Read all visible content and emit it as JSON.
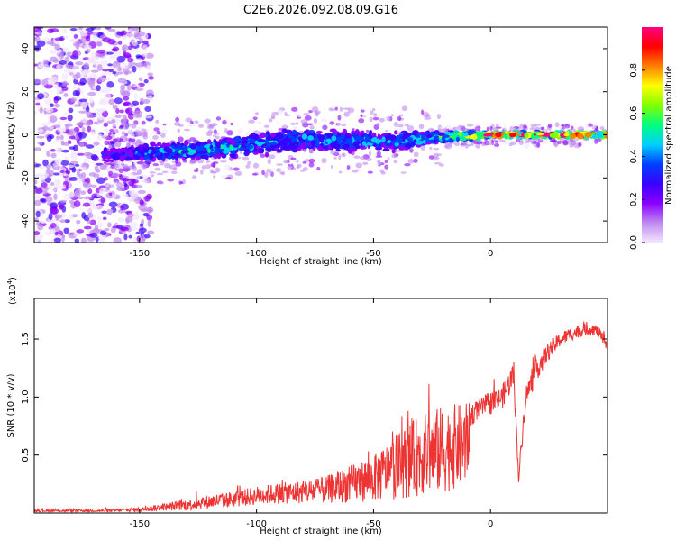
{
  "chart_data": [
    {
      "type": "heatmap",
      "title": "C2E6.2026.092.08.09.G16",
      "xlabel": "Height of straight line (km)",
      "ylabel": "Frequency (Hz)",
      "xlim": [
        -195,
        50
      ],
      "ylim": [
        -50,
        50
      ],
      "x_ticks": [
        -150,
        -100,
        -50,
        0
      ],
      "y_ticks": [
        -40,
        -20,
        0,
        20,
        40
      ],
      "colorbar": {
        "label": "Normalized spectral amplitude",
        "range": [
          0,
          1
        ],
        "ticks": [
          "0.0",
          "0.2",
          "0.4",
          "0.6",
          "0.8"
        ],
        "tick_values": [
          0.0,
          0.2,
          0.4,
          0.6,
          0.8
        ],
        "colors": [
          "#f2e6ff",
          "#c08af0",
          "#8a00ff",
          "#3a00ff",
          "#0040ff",
          "#00d0ff",
          "#00ff80",
          "#80ff00",
          "#ffff00",
          "#ff8000",
          "#ff0000",
          "#ff0080"
        ]
      },
      "ridge": [
        {
          "x": -160,
          "freq": -9,
          "amp": 0.3,
          "spread": 4
        },
        {
          "x": -140,
          "freq": -8,
          "amp": 0.4,
          "spread": 5
        },
        {
          "x": -120,
          "freq": -7,
          "amp": 0.45,
          "spread": 5
        },
        {
          "x": -100,
          "freq": -4,
          "amp": 0.4,
          "spread": 6
        },
        {
          "x": -80,
          "freq": -2,
          "amp": 0.4,
          "spread": 6
        },
        {
          "x": -60,
          "freq": -3,
          "amp": 0.4,
          "spread": 6
        },
        {
          "x": -40,
          "freq": -3,
          "amp": 0.4,
          "spread": 5
        },
        {
          "x": -20,
          "freq": -1,
          "amp": 0.5,
          "spread": 3
        },
        {
          "x": 0,
          "freq": 0,
          "amp": 0.9,
          "spread": 1.5
        },
        {
          "x": 20,
          "freq": 0,
          "amp": 0.85,
          "spread": 1.5
        },
        {
          "x": 45,
          "freq": 0,
          "amp": 0.85,
          "spread": 1.5
        }
      ]
    },
    {
      "type": "line",
      "xlabel": "Height of straight line (km)",
      "ylabel": "SNR (10 * v/v)",
      "y_multiplier": "(x10",
      "y_multiplier_exp": "4",
      "y_multiplier_close": ")",
      "xlim": [
        -195,
        50
      ],
      "ylim": [
        0,
        1.85
      ],
      "x_ticks": [
        -150,
        -100,
        -50,
        0
      ],
      "y_ticks": [
        0.5,
        1.0,
        1.5
      ],
      "y_tick_labels": [
        "0.5",
        "1.0",
        "1.5"
      ],
      "series": [
        {
          "name": "SNR",
          "color": "#ee3333",
          "x": [
            -195,
            -180,
            -165,
            -150,
            -140,
            -130,
            -120,
            -110,
            -100,
            -90,
            -80,
            -70,
            -60,
            -50,
            -40,
            -30,
            -20,
            -10,
            -8,
            -5,
            0,
            5,
            10,
            12,
            15,
            20,
            25,
            30,
            35,
            40,
            45,
            50
          ],
          "values": [
            0.02,
            0.02,
            0.02,
            0.03,
            0.05,
            0.07,
            0.1,
            0.12,
            0.15,
            0.17,
            0.18,
            0.2,
            0.25,
            0.3,
            0.4,
            0.5,
            0.55,
            0.6,
            0.85,
            0.9,
            0.95,
            1.0,
            1.2,
            0.3,
            1.0,
            1.25,
            1.4,
            1.5,
            1.55,
            1.58,
            1.58,
            1.45
          ],
          "noise_amplitude": [
            0.01,
            0.01,
            0.01,
            0.02,
            0.03,
            0.05,
            0.06,
            0.07,
            0.08,
            0.09,
            0.1,
            0.12,
            0.16,
            0.2,
            0.28,
            0.35,
            0.38,
            0.35,
            0.1,
            0.08,
            0.1,
            0.1,
            0.12,
            0.05,
            0.1,
            0.1,
            0.08,
            0.06,
            0.06,
            0.05,
            0.05,
            0.05
          ]
        }
      ]
    }
  ]
}
